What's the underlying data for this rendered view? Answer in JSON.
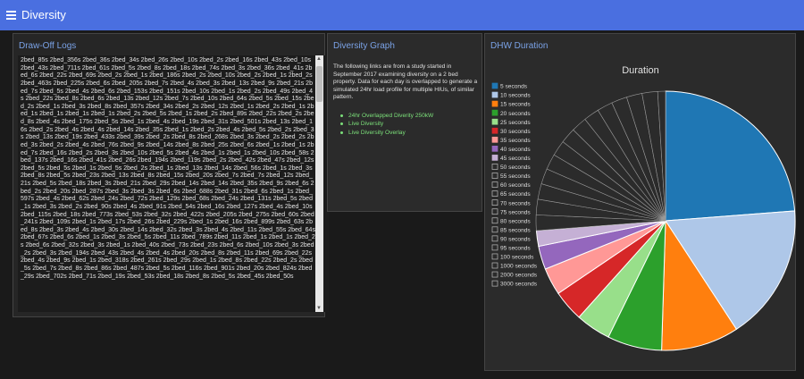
{
  "app": {
    "title": "Diversity",
    "menu_icon": "hamburger-menu-icon"
  },
  "logs_panel": {
    "title": "Draw-Off Logs",
    "text": "2bed_85s 2bed_356s 2bed_36s 2bed_34s 2bed_26s 2bed_10s 2bed_2s 2bed_16s 2bed_43s 2bed_10s 2bed_43s 2bed_711s 2bed_61s 2bed_5s 2bed_8s 2bed_18s 2bed_74s 2bed_3s 2bed_36s 2bed_41s 2bed_6s 2bed_22s 2bed_69s 2bed_2s 2bed_1s 2bed_186s 2bed_2s 2bed_10s 2bed_2s 2bed_1s 2bed_2s 2bed_463s 2bed_225s 2bed_6s 2bed_205s 2bed_7s 2bed_4s 2bed_3s 2bed_13s 2bed_9s 2bed_21s 2bed_7s 2bed_5s 2bed_4s 2bed_6s 2bed_153s 2bed_151s 2bed_10s 2bed_1s 2bed_2s 2bed_49s 2bed_4s 2bed_22s 2bed_8s 2bed_6s 2bed_13s 2bed_12s 2bed_7s 2bed_10s 2bed_64s 2bed_5s 2bed_15s 2bed_2s 2bed_1s 2bed_3s 2bed_8s 2bed_357s 2bed_34s 2bed_2s 2bed_12s 2bed_1s 2bed_2s 2bed_1s 2bed_1s 2bed_1s 2bed_1s 2bed_1s 2bed_2s 2bed_5s 2bed_1s 2bed_2s 2bed_89s 2bed_22s 2bed_2s 2bed_8s 2bed_4s 2bed_175s 2bed_5s 2bed_1s 2bed_4s 2bed_19s 2bed_31s 2bed_501s 2bed_13s 2bed_16s 2bed_2s 2bed_4s 2bed_4s 2bed_14s 2bed_35s 2bed_1s 2bed_2s 2bed_4s 2bed_5s 2bed_2s 2bed_3s 2bed_13s 2bed_19s 2bed_433s 2bed_39s 2bed_2s 2bed_8s 2bed_268s 2bed_3s 2bed_2s 2bed_2s 2bed_3s 2bed_2s 2bed_4s 2bed_76s 2bed_9s 2bed_14s 2bed_8s 2bed_25s 2bed_6s 2bed_1s 2bed_1s 2bed_7s 2bed_16s 2bed_2s 2bed_3s 2bed_10s 2bed_5s 2bed_4s 2bed_1s 2bed_1s 2bed_10s 2bed_58s 2bed_137s 2bed_16s 2bed_41s 2bed_26s 2bed_194s 2bed_119s 2bed_2s 2bed_42s 2bed_47s 2bed_12s 2bed_5s 2bed_5s 2bed_1s 2bed_5s 2bed_2s 2bed_1s 2bed_13s 2bed_14s 2bed_56s 2bed_1s 2bed_3s 2bed_8s 2bed_5s 2bed_23s 2bed_13s 2bed_8s 2bed_15s 2bed_20s 2bed_7s 2bed_7s 2bed_12s 2bed_21s 2bed_5s 2bed_18s 2bed_3s 2bed_21s 2bed_29s 2bed_14s 2bed_14s 2bed_35s 2bed_9s 2bed_6s 2bed_2s 2bed_20s 2bed_287s 2bed_3s 2bed_3s 2bed_6s 2bed_688s 2bed_31s 2bed_6s 2bed_1s 2bed_597s 2bed_4s 2bed_62s 2bed_24s 2bed_72s 2bed_129s 2bed_68s 2bed_24s 2bed_131s 2bed_5s 2bed_1s 2bed_3s 2bed_2s 2bed_90s 2bed_4s 2bed_91s 2bed_54s 2bed_16s 2bed_127s 2bed_4s 2bed_10s 2bed_115s 2bed_18s 2bed_773s 2bed_53s 2bed_32s 2bed_422s 2bed_205s 2bed_275s 2bed_60s 2bed_241s 2bed_109s 2bed_1s 2bed_17s 2bed_26s 2bed_229s 2bed_1s 2bed_16s 2bed_899s 2bed_63s 2bed_8s 2bed_3s 2bed_4s 2bed_30s 2bed_14s 2bed_32s 2bed_3s 2bed_4s 2bed_11s 2bed_55s 2bed_64s 2bed_67s 2bed_6s 2bed_1s 2bed_3s 2bed_5s 2bed_11s 2bed_789s 2bed_11s 2bed_1s 2bed_1s 2bed_2s 2bed_6s 2bed_32s 2bed_3s 2bed_1s 2bed_40s 2bed_73s 2bed_23s 2bed_6s 2bed_10s 2bed_3s 2bed_2s 2bed_3s 2bed_194s 2bed_43s 2bed_4s 2bed_4s 2bed_20s 2bed_8s 2bed_11s 2bed_69s 2bed_22s 2bed_4s 2bed_9s 2bed_1s 2bed_318s 2bed_261s 2bed_29s 2bed_1s 2bed_8s 2bed_22s 2bed_2s 2bed_5s 2bed_7s 2bed_8s 2bed_86s 2bed_487s 2bed_5s 2bed_116s 2bed_901s 2bed_20s 2bed_824s 2bed_29s 2bed_702s 2bed_71s 2bed_19s 2bed_53s 2bed_18s 2bed_8s 2bed_5s 2bed_45s 2bed_50s"
  },
  "graph_panel": {
    "title": "Diversity Graph",
    "description": "The following links are from a study started in September 2017 examining diversity on a 2 bed property. Data for each day is overlapped to generate a simulated 24hr load profile for multiple HIUs, of similar pattern.",
    "links": [
      "24hr Overlapped Diverity 250kW",
      "Live Diversity",
      "Live Diversity Overlay"
    ]
  },
  "dhw_panel": {
    "title": "DHW Duration"
  },
  "chart_data": {
    "type": "pie",
    "title": "Duration",
    "legend_position": "left",
    "categories": [
      "5 seconds",
      "10 seconds",
      "15 seconds",
      "20 seconds",
      "25 seconds",
      "30 seconds",
      "35 seconds",
      "40 seconds",
      "45 seconds",
      "50 seconds",
      "55 seconds",
      "60 seconds",
      "65 seconds",
      "70 seconds",
      "75 seconds",
      "80 seconds",
      "85 seconds",
      "90 seconds",
      "95 seconds",
      "100 seconds",
      "1000 seconds",
      "2000 seconds",
      "3000 seconds"
    ],
    "values": [
      24.5,
      17.5,
      10.0,
      7.0,
      4.5,
      4.0,
      3.5,
      3.0,
      2.0,
      2.0,
      2.0,
      2.0,
      2.0,
      2.0,
      2.0,
      2.0,
      2.0,
      2.0,
      2.0,
      2.0,
      2.0,
      2.0,
      1.0
    ],
    "colors": [
      "#1f77b4",
      "#aec7e8",
      "#ff7f0e",
      "#2ca02c",
      "#98df8a",
      "#d62728",
      "#ff9896",
      "#9467bd",
      "#c5b0d5",
      "#2b2b2b",
      "#2b2b2b",
      "#2b2b2b",
      "#2b2b2b",
      "#2b2b2b",
      "#2b2b2b",
      "#2b2b2b",
      "#2b2b2b",
      "#2b2b2b",
      "#2b2b2b",
      "#2b2b2b",
      "#2b2b2b",
      "#2b2b2b",
      "#2b2b2b"
    ]
  }
}
